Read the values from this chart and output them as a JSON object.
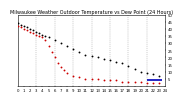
{
  "title": "Milwaukee Weather Outdoor Temperature vs Dew Point (24 Hours)",
  "background_color": "#ffffff",
  "grid_color": "#999999",
  "ylim": [
    0,
    50
  ],
  "xlim": [
    0,
    24
  ],
  "ytick_positions": [
    5,
    10,
    15,
    20,
    25,
    30,
    35,
    40,
    45,
    50
  ],
  "ytick_labels": [
    "5",
    "10",
    "15",
    "20",
    "25",
    "30",
    "35",
    "40",
    "45",
    "50"
  ],
  "temp_x": [
    0,
    0.5,
    1.0,
    1.5,
    2.0,
    2.5,
    3.0,
    3.5,
    4.0,
    4.5,
    5.0,
    6.0,
    7.0,
    8.0,
    9.0,
    10.0,
    11.0,
    12.0,
    13.0,
    14.0,
    15.0,
    16.0,
    17.0,
    18.0,
    19.0,
    20.0,
    21.0,
    22.0,
    23.0
  ],
  "temp_y": [
    44,
    43,
    42,
    41,
    40,
    39,
    38,
    37,
    36,
    35,
    34,
    32,
    30,
    28,
    26,
    24,
    22,
    21,
    20,
    19,
    18,
    17,
    16,
    14,
    12,
    10,
    9,
    8,
    7
  ],
  "dew_x": [
    0,
    0.5,
    1.0,
    1.5,
    2.0,
    2.5,
    3.0,
    3.5,
    4.0,
    4.5,
    5.0,
    5.5,
    6.0,
    6.5,
    7.0,
    7.5,
    8.0,
    9.0,
    10.0,
    11.0,
    12.0,
    13.0,
    14.0,
    15.0,
    16.0,
    17.0,
    18.0,
    19.0,
    20.0,
    21.0,
    22.0,
    23.0
  ],
  "dew_y": [
    42,
    41,
    40,
    39,
    38,
    37,
    36,
    35,
    34,
    32,
    28,
    24,
    20,
    16,
    13,
    11,
    9,
    7,
    6,
    5,
    5,
    5,
    4,
    4,
    4,
    3,
    3,
    3,
    3,
    2,
    2,
    2
  ],
  "blue_x": [
    21.0,
    23.5
  ],
  "blue_y": [
    4,
    4
  ],
  "temp_color": "#000000",
  "dew_color": "#cc0000",
  "blue_color": "#0000bb",
  "marker_size": 1.8,
  "vgrid_x": [
    3,
    6,
    9,
    12,
    15,
    18,
    21
  ],
  "title_fontsize": 3.5,
  "tick_fontsize": 2.8,
  "blue_linewidth": 1.2
}
